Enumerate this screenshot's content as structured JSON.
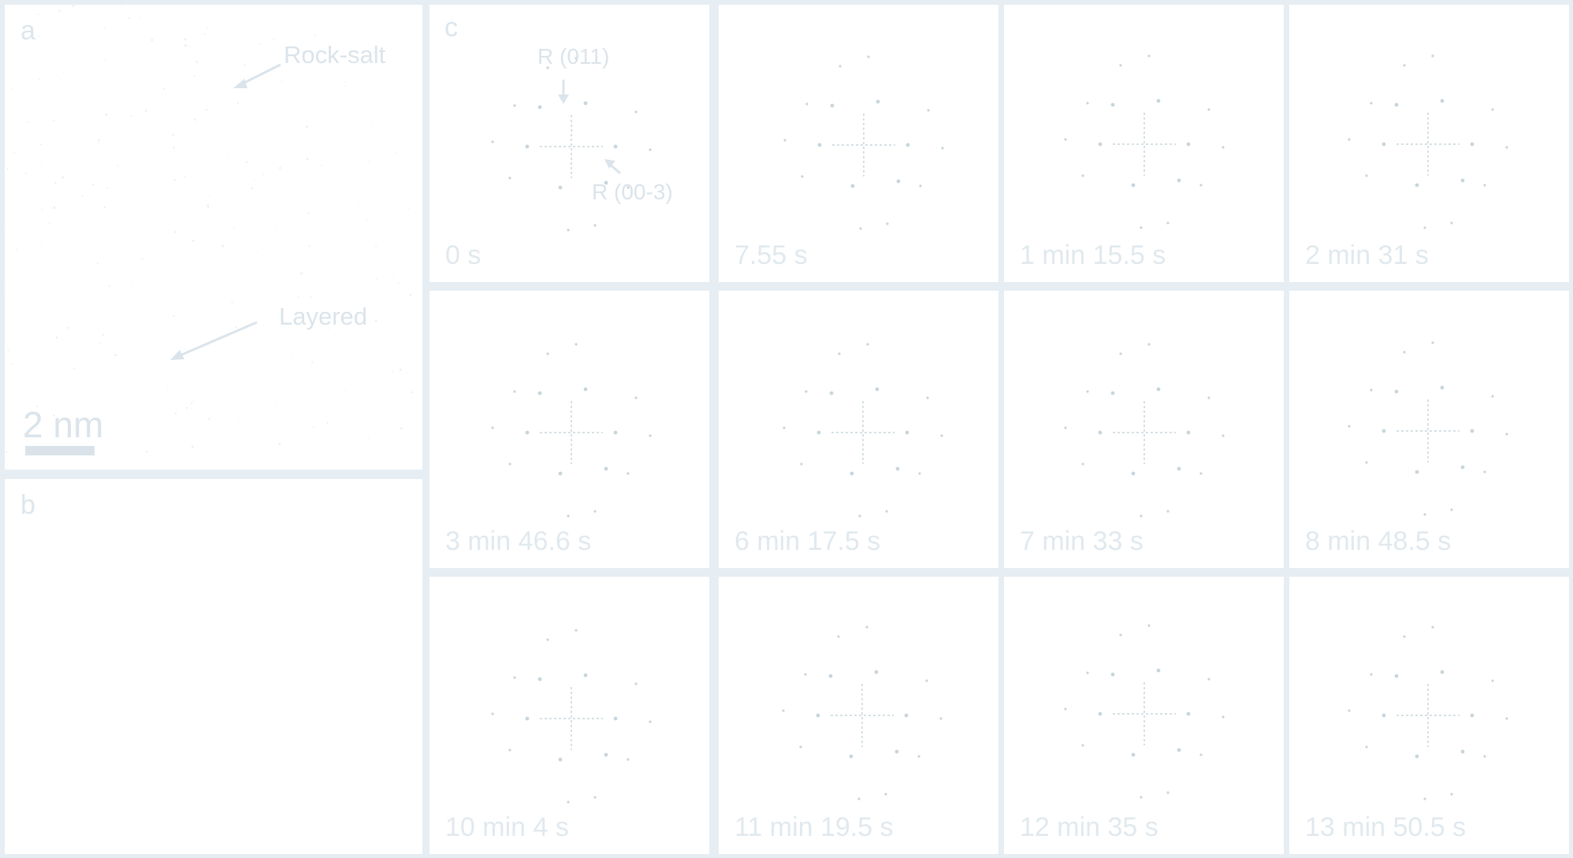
{
  "panels": {
    "a": {
      "letter": "a",
      "label_rocksalt": "Rock-salt",
      "label_layered": "Layered",
      "scale": "2 nm"
    },
    "b": {
      "letter": "b"
    },
    "c": {
      "letter": "c",
      "label_r011": "R (011)",
      "label_r003": "R (00-3)"
    }
  },
  "timestamps": [
    "0 s",
    "7.55 s",
    "1 min 15.5 s",
    "2 min 31 s",
    "3 min 46.6 s",
    "6 min 17.5 s",
    "7 min 33 s",
    "8 min 48.5 s",
    "10 min 4 s",
    "11 min 19.5 s",
    "12 min 35 s",
    "13 min 50.5 s"
  ],
  "colors": {
    "background": "#e6eef3",
    "panel": "#ffffff",
    "text": "#dbe4ea",
    "spots": "#c9d5dc"
  }
}
